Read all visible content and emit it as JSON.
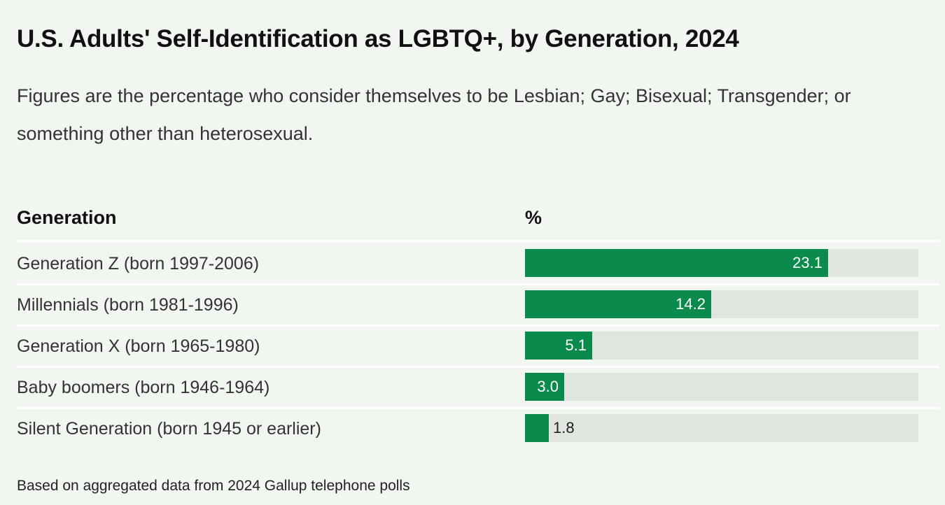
{
  "chart_data": {
    "type": "bar",
    "orientation": "horizontal",
    "title": "U.S. Adults' Self-Identification as LGBTQ+, by Generation, 2024",
    "subtitle": "Figures are the percentage who consider themselves to be Lesbian; Gay; Bisexual; Transgender; or something other than heterosexual.",
    "column_headers": {
      "category": "Generation",
      "value": "%"
    },
    "categories": [
      "Generation Z (born 1997-2006)",
      "Millennials (born 1981-1996)",
      "Generation X (born 1965-1980)",
      "Baby boomers (born 1946-1964)",
      "Silent Generation (born 1945 or earlier)"
    ],
    "values": [
      23.1,
      14.2,
      5.1,
      3.0,
      1.8
    ],
    "value_labels": [
      "23.1",
      "14.2",
      "5.1",
      "3.0",
      "1.8"
    ],
    "xlim": [
      0,
      30
    ],
    "footnote": "Based on aggregated data from 2024 Gallup telephone polls",
    "colors": {
      "bar": "#0a8a4b",
      "track": "#e1e5e0",
      "background": "#f1f7f0"
    }
  }
}
